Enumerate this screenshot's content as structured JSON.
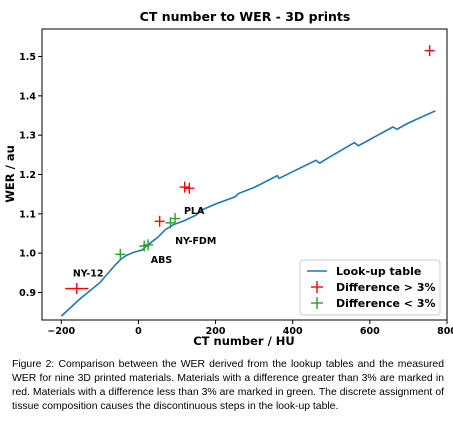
{
  "chart_data": {
    "type": "line",
    "title": "CT number to WER - 3D prints",
    "xlabel": "CT number / HU",
    "ylabel": "WER / au",
    "xlim": [
      -250,
      800
    ],
    "ylim": [
      0.83,
      1.57
    ],
    "xticks": [
      -200,
      0,
      200,
      400,
      600,
      800
    ],
    "yticks": [
      0.9,
      1.0,
      1.1,
      1.2,
      1.3,
      1.4,
      1.5
    ],
    "grid": false,
    "legend_position": "bottom-right",
    "lookup_table": {
      "name": "Look-up table",
      "color": "#1f77b4",
      "x": [
        -200,
        -150,
        -100,
        -60,
        -45,
        -30,
        -10,
        10,
        20,
        30,
        50,
        70,
        90,
        120,
        150,
        160,
        200,
        250,
        260,
        300,
        360,
        365,
        400,
        460,
        470,
        500,
        560,
        570,
        600,
        660,
        670,
        700,
        770
      ],
      "y": [
        0.84,
        0.885,
        0.925,
        0.97,
        0.985,
        0.995,
        1.003,
        1.008,
        1.018,
        1.025,
        1.04,
        1.06,
        1.072,
        1.083,
        1.097,
        1.108,
        1.125,
        1.143,
        1.152,
        1.167,
        1.197,
        1.19,
        1.207,
        1.236,
        1.229,
        1.247,
        1.281,
        1.273,
        1.289,
        1.321,
        1.315,
        1.331,
        1.362
      ]
    },
    "series": [
      {
        "name": "Difference > 3%",
        "color": "#ff0000",
        "points": [
          {
            "x": -160,
            "y": 0.91,
            "xerr": 30
          },
          {
            "x": 55,
            "y": 1.081
          },
          {
            "x": 120,
            "y": 1.168
          },
          {
            "x": 132,
            "y": 1.165
          },
          {
            "x": 755,
            "y": 1.515
          }
        ]
      },
      {
        "name": "Difference < 3%",
        "color": "#2ca02c",
        "points": [
          {
            "x": -47,
            "y": 0.997
          },
          {
            "x": 15,
            "y": 1.018
          },
          {
            "x": 25,
            "y": 1.021
          },
          {
            "x": 83,
            "y": 1.077
          },
          {
            "x": 95,
            "y": 1.088
          }
        ]
      }
    ],
    "annotations": [
      {
        "text": "NY-12",
        "x": -170,
        "y": 0.94
      },
      {
        "text": "ABS",
        "x": 32,
        "y": 0.975
      },
      {
        "text": "NY-FDM",
        "x": 95,
        "y": 1.023
      },
      {
        "text": "PLA",
        "x": 118,
        "y": 1.1
      }
    ]
  },
  "caption": "Figure 2: Comparison between the WER derived from the lookup tables and the measured WER for nine 3D printed materials. Materials with a difference greater than 3% are marked in red. Materials with a difference less than 3% are marked in green. The discrete assignment of tissue composition causes the discontinuous steps in the look-up table."
}
